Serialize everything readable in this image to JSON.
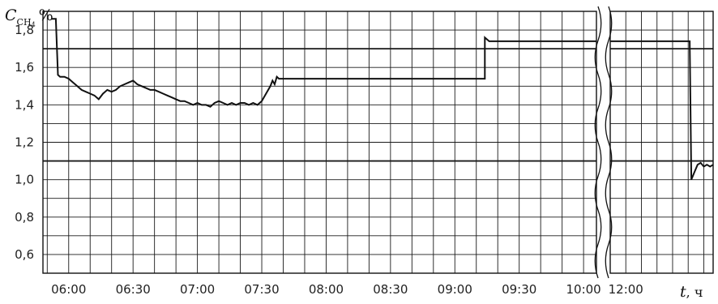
{
  "chart_data": {
    "type": "line",
    "ylabel": {
      "symbol": "C",
      "subscript": "CH",
      "subscript_index": "4",
      "unit": "%"
    },
    "xlabel": {
      "symbol": "t",
      "unit": ", ч"
    },
    "y_tick_labels": [
      "0,6",
      "0,8",
      "1,0",
      "1,2",
      "1,4",
      "1,6",
      "1,8"
    ],
    "y_ticks": [
      0.6,
      0.8,
      1.0,
      1.2,
      1.4,
      1.6,
      1.8
    ],
    "ylim": [
      0.5,
      1.9
    ],
    "y_minor_step": 0.1,
    "y_emphasized_lines": [
      1.1,
      1.7
    ],
    "x_segments": [
      {
        "xlim": [
          "05:48",
          "10:06"
        ],
        "tick_labels": [
          "06:00",
          "06:30",
          "07:00",
          "07:30",
          "08:00",
          "08:30",
          "09:00",
          "09:30",
          "10:00"
        ],
        "ticks_min": [
          360,
          390,
          420,
          450,
          480,
          510,
          540,
          570,
          600
        ],
        "minor_step_min": 10
      },
      {
        "xlim": [
          "11:50",
          "12:56"
        ],
        "tick_labels": [
          "12:00"
        ],
        "ticks_min": [
          720
        ],
        "minor_step_min": 10
      }
    ],
    "axis_break": "between 10:06 and 11:50",
    "grid": true,
    "series": [
      {
        "x": [
          "05:52",
          "05:54",
          "05:55",
          "05:56",
          "05:58",
          "06:00",
          "06:02",
          "06:04",
          "06:06",
          "06:08",
          "06:10",
          "06:12",
          "06:14",
          "06:16",
          "06:18",
          "06:20",
          "06:22",
          "06:24",
          "06:26",
          "06:28",
          "06:30",
          "06:32",
          "06:34",
          "06:36",
          "06:38",
          "06:40",
          "06:42",
          "06:44",
          "06:46",
          "06:48",
          "06:50",
          "06:52",
          "06:54",
          "06:56",
          "06:58",
          "07:00",
          "07:02",
          "07:04",
          "07:06",
          "07:08",
          "07:10",
          "07:12",
          "07:14",
          "07:16",
          "07:18",
          "07:20",
          "07:22",
          "07:24",
          "07:26",
          "07:28",
          "07:30",
          "07:32",
          "07:34",
          "07:35",
          "07:36",
          "07:37",
          "07:38",
          "07:40",
          "08:00",
          "09:00",
          "09:14",
          "09:14",
          "09:15",
          "09:16",
          "09:20",
          "10:06",
          "11:50",
          "12:30",
          "12:41",
          "12:42",
          "12:44",
          "12:46",
          "12:48",
          "12:50",
          "12:52",
          "12:54",
          "12:56"
        ],
        "y": [
          1.86,
          1.86,
          1.56,
          1.55,
          1.55,
          1.54,
          1.52,
          1.5,
          1.48,
          1.47,
          1.46,
          1.45,
          1.43,
          1.46,
          1.48,
          1.47,
          1.48,
          1.5,
          1.51,
          1.52,
          1.53,
          1.51,
          1.5,
          1.49,
          1.48,
          1.48,
          1.47,
          1.46,
          1.45,
          1.44,
          1.43,
          1.42,
          1.42,
          1.41,
          1.4,
          1.41,
          1.4,
          1.4,
          1.39,
          1.41,
          1.42,
          1.41,
          1.4,
          1.41,
          1.4,
          1.41,
          1.41,
          1.4,
          1.41,
          1.4,
          1.42,
          1.46,
          1.5,
          1.53,
          1.51,
          1.55,
          1.54,
          1.54,
          1.54,
          1.54,
          1.54,
          1.76,
          1.75,
          1.74,
          1.74,
          1.74,
          1.74,
          1.74,
          1.74,
          1.0,
          1.04,
          1.08,
          1.09,
          1.07,
          1.08,
          1.07,
          1.08
        ]
      }
    ]
  }
}
